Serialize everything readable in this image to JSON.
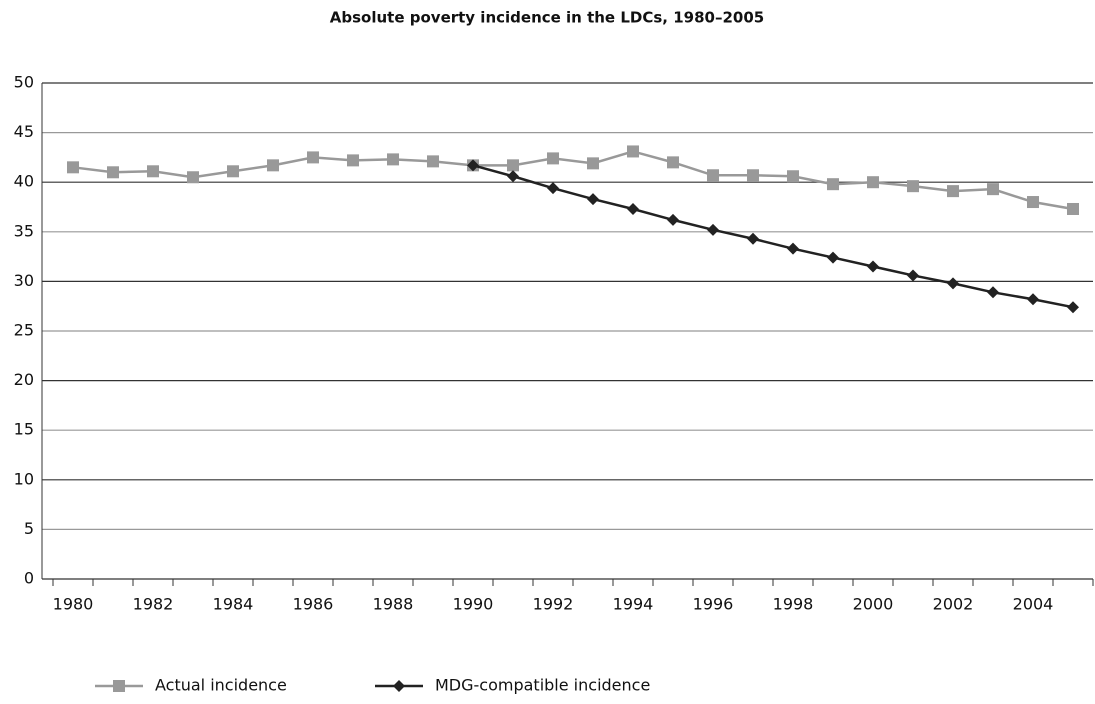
{
  "chart_data": {
    "type": "line",
    "title": "Absolute poverty incidence in the LDCs, 1980–2005",
    "categories": [
      "1980",
      null,
      "1982",
      null,
      "1984",
      null,
      "1986",
      null,
      "1988",
      null,
      "1990",
      null,
      "1992",
      null,
      "1994",
      null,
      "1996",
      null,
      "1998",
      null,
      "2000",
      null,
      "2002",
      null,
      "2004",
      null
    ],
    "series": [
      {
        "name": "Actual incidence",
        "color": "#999999",
        "marker": "square",
        "values": [
          41.5,
          41.0,
          41.1,
          40.5,
          41.1,
          41.7,
          42.5,
          42.2,
          42.3,
          42.1,
          41.7,
          41.7,
          42.4,
          41.9,
          43.1,
          42.0,
          40.7,
          40.7,
          40.6,
          39.8,
          40.0,
          39.6,
          39.1,
          39.3,
          38.0,
          37.3
        ]
      },
      {
        "name": "MDG-compatible incidence",
        "color": "#222222",
        "marker": "diamond",
        "values": [
          null,
          null,
          null,
          null,
          null,
          null,
          null,
          null,
          null,
          null,
          41.7,
          40.6,
          39.4,
          38.3,
          37.3,
          36.2,
          35.2,
          34.3,
          33.3,
          32.4,
          31.5,
          30.6,
          29.8,
          28.9,
          28.2,
          27.4
        ]
      }
    ],
    "ylim": [
      0,
      50
    ],
    "yticks": [
      0,
      5,
      10,
      15,
      20,
      25,
      30,
      35,
      40,
      45,
      50
    ],
    "grid": true,
    "legend": "bottom"
  }
}
